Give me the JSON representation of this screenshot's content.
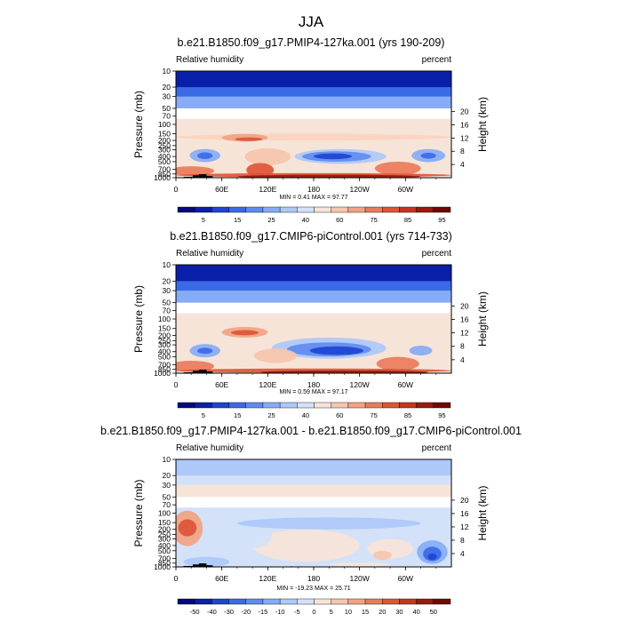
{
  "figure": {
    "title": "JJA"
  },
  "colors": {
    "rh_palette": [
      "#08087a",
      "#0a1fa8",
      "#1e44d2",
      "#3a6ae6",
      "#5f8cf0",
      "#86acf6",
      "#adc9f8",
      "#d3e2f8",
      "#f7e4d8",
      "#f6c6ae",
      "#f2a383",
      "#ea7b5a",
      "#de5536",
      "#c63420",
      "#9b1a0b",
      "#6e0a03"
    ],
    "diff_palette": [
      "#08087a",
      "#0a1fa8",
      "#1e44d2",
      "#3a6ae6",
      "#5f8cf0",
      "#86acf6",
      "#adc9f8",
      "#d3e2f8",
      "#f7e4d8",
      "#f6c6ae",
      "#f2a383",
      "#ea7b5a",
      "#de5536",
      "#c63420",
      "#9b1a0b",
      "#6e0a03"
    ]
  },
  "chart_data": [
    {
      "type": "heatmap",
      "panel": "top",
      "title": "b.e21.B1850.f09_g17.PMIP4-127ka.001 (yrs 190-209)",
      "left_label": "Relative humidity",
      "right_label": "percent",
      "ylabel": "Pressure (mb)",
      "ylabel_right": "Height (km)",
      "x_ticks": [
        "0",
        "60E",
        "120E",
        "180",
        "120W",
        "60W"
      ],
      "y_ticks": [
        "1000",
        "850",
        "700",
        "500",
        "400",
        "300",
        "250",
        "200",
        "150",
        "100",
        "70",
        "50",
        "30",
        "20",
        "10"
      ],
      "y_ticks_right": [
        "20",
        "16",
        "12",
        "8",
        "4"
      ],
      "min_max": "MIN = 0.41  MAX = 97.77",
      "colorbar_labels": [
        "5",
        "15",
        "25",
        "40",
        "60",
        "75",
        "85",
        "95"
      ]
    },
    {
      "type": "heatmap",
      "panel": "middle",
      "title": "b.e21.B1850.f09_g17.CMIP6-piControl.001 (yrs 714-733)",
      "left_label": "Relative humidity",
      "right_label": "percent",
      "ylabel": "Pressure (mb)",
      "ylabel_right": "Height (km)",
      "x_ticks": [
        "0",
        "60E",
        "120E",
        "180",
        "120W",
        "60W"
      ],
      "y_ticks": [
        "1000",
        "850",
        "700",
        "500",
        "400",
        "300",
        "250",
        "200",
        "150",
        "100",
        "70",
        "50",
        "30",
        "20",
        "10"
      ],
      "y_ticks_right": [
        "20",
        "16",
        "12",
        "8",
        "4"
      ],
      "min_max": "MIN = 0.59  MAX = 97.17",
      "colorbar_labels": [
        "5",
        "15",
        "25",
        "40",
        "60",
        "75",
        "85",
        "95"
      ]
    },
    {
      "type": "heatmap",
      "panel": "bottom",
      "title": "b.e21.B1850.f09_g17.PMIP4-127ka.001 - b.e21.B1850.f09_g17.CMIP6-piControl.001",
      "left_label": "Relative humidity",
      "right_label": "percent",
      "ylabel": "Pressure (mb)",
      "ylabel_right": "Height (km)",
      "x_ticks": [
        "0",
        "60E",
        "120E",
        "180",
        "120W",
        "60W"
      ],
      "y_ticks": [
        "1000",
        "850",
        "700",
        "500",
        "400",
        "300",
        "250",
        "200",
        "150",
        "100",
        "70",
        "50",
        "30",
        "20",
        "10"
      ],
      "y_ticks_right": [
        "20",
        "16",
        "12",
        "8",
        "4"
      ],
      "min_max": "MIN = -19.23  MAX = 25.71",
      "colorbar_labels": [
        "-50",
        "-40",
        "-30",
        "-20",
        "-15",
        "-10",
        "-5",
        "0",
        "5",
        "10",
        "15",
        "20",
        "30",
        "40",
        "50"
      ]
    }
  ]
}
